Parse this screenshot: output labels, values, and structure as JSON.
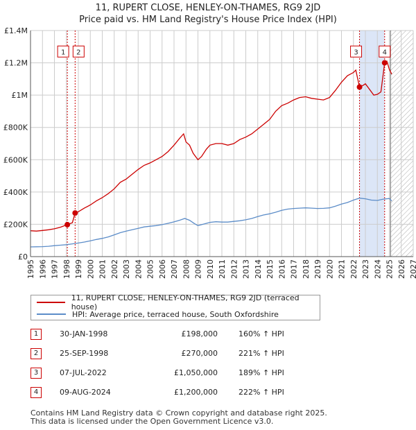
{
  "title_line1": "11, RUPERT CLOSE, HENLEY-ON-THAMES, RG9 2JD",
  "title_line2": "Price paid vs. HM Land Registry's House Price Index (HPI)",
  "colors": {
    "property_line": "#cc0000",
    "hpi_line": "#5b8cc8",
    "grid": "#cccccc",
    "highlight_fill": "#dce6f7",
    "marker_border": "#cc0000",
    "forecast_hatch": "#999999"
  },
  "chart_data": {
    "type": "line",
    "x_axis": {
      "min": 1995,
      "max": 2027,
      "ticks": [
        "1995",
        "1996",
        "1997",
        "1998",
        "1999",
        "2000",
        "2001",
        "2002",
        "2003",
        "2004",
        "2005",
        "2006",
        "2007",
        "2008",
        "2009",
        "2010",
        "2011",
        "2012",
        "2013",
        "2014",
        "2015",
        "2016",
        "2017",
        "2018",
        "2019",
        "2020",
        "2021",
        "2022",
        "2023",
        "2024",
        "2025",
        "2026",
        "2027"
      ]
    },
    "y_axis": {
      "min": 0,
      "max": 1400000,
      "ticks": [
        0,
        200000,
        400000,
        600000,
        800000,
        1000000,
        1200000,
        1400000
      ],
      "tick_labels": [
        "£0",
        "£200K",
        "£400K",
        "£600K",
        "£800K",
        "£1M",
        "£1.2M",
        "£1.4M"
      ]
    },
    "highlight_band": [
      2022.51,
      2024.6
    ],
    "forecast_start": 2025.1,
    "series": [
      {
        "name": "property",
        "points": [
          [
            1995.0,
            160000
          ],
          [
            1995.5,
            158000
          ],
          [
            1996.0,
            162000
          ],
          [
            1996.5,
            166000
          ],
          [
            1997.0,
            172000
          ],
          [
            1997.5,
            182000
          ],
          [
            1998.08,
            198000
          ],
          [
            1998.5,
            210000
          ],
          [
            1998.73,
            270000
          ],
          [
            1999.0,
            278000
          ],
          [
            1999.5,
            300000
          ],
          [
            2000.0,
            320000
          ],
          [
            2000.5,
            345000
          ],
          [
            2001.0,
            365000
          ],
          [
            2001.5,
            390000
          ],
          [
            2002.0,
            420000
          ],
          [
            2002.5,
            460000
          ],
          [
            2003.0,
            480000
          ],
          [
            2003.5,
            510000
          ],
          [
            2004.0,
            540000
          ],
          [
            2004.5,
            565000
          ],
          [
            2005.0,
            580000
          ],
          [
            2005.5,
            600000
          ],
          [
            2006.0,
            620000
          ],
          [
            2006.5,
            650000
          ],
          [
            2007.0,
            690000
          ],
          [
            2007.5,
            735000
          ],
          [
            2007.8,
            760000
          ],
          [
            2008.0,
            710000
          ],
          [
            2008.3,
            690000
          ],
          [
            2008.6,
            640000
          ],
          [
            2009.0,
            600000
          ],
          [
            2009.3,
            620000
          ],
          [
            2009.7,
            665000
          ],
          [
            2010.0,
            690000
          ],
          [
            2010.5,
            700000
          ],
          [
            2011.0,
            700000
          ],
          [
            2011.5,
            690000
          ],
          [
            2012.0,
            700000
          ],
          [
            2012.5,
            725000
          ],
          [
            2013.0,
            740000
          ],
          [
            2013.5,
            760000
          ],
          [
            2014.0,
            790000
          ],
          [
            2014.5,
            820000
          ],
          [
            2015.0,
            850000
          ],
          [
            2015.5,
            900000
          ],
          [
            2016.0,
            935000
          ],
          [
            2016.5,
            950000
          ],
          [
            2017.0,
            970000
          ],
          [
            2017.5,
            985000
          ],
          [
            2018.0,
            990000
          ],
          [
            2018.5,
            980000
          ],
          [
            2019.0,
            975000
          ],
          [
            2019.5,
            970000
          ],
          [
            2020.0,
            985000
          ],
          [
            2020.5,
            1030000
          ],
          [
            2021.0,
            1080000
          ],
          [
            2021.5,
            1120000
          ],
          [
            2022.0,
            1140000
          ],
          [
            2022.2,
            1155000
          ],
          [
            2022.51,
            1050000
          ],
          [
            2022.8,
            1060000
          ],
          [
            2023.0,
            1070000
          ],
          [
            2023.3,
            1040000
          ],
          [
            2023.7,
            1000000
          ],
          [
            2024.0,
            1005000
          ],
          [
            2024.3,
            1020000
          ],
          [
            2024.61,
            1200000
          ],
          [
            2024.8,
            1210000
          ],
          [
            2025.0,
            1160000
          ],
          [
            2025.2,
            1130000
          ]
        ]
      },
      {
        "name": "hpi",
        "points": [
          [
            1995.0,
            60000
          ],
          [
            1995.5,
            61000
          ],
          [
            1996.0,
            62000
          ],
          [
            1996.5,
            64000
          ],
          [
            1997.0,
            68000
          ],
          [
            1997.5,
            71000
          ],
          [
            1998.0,
            74000
          ],
          [
            1998.5,
            79000
          ],
          [
            1999.0,
            84000
          ],
          [
            1999.5,
            90000
          ],
          [
            2000.0,
            98000
          ],
          [
            2000.5,
            106000
          ],
          [
            2001.0,
            113000
          ],
          [
            2001.5,
            122000
          ],
          [
            2002.0,
            135000
          ],
          [
            2002.5,
            148000
          ],
          [
            2003.0,
            158000
          ],
          [
            2003.5,
            166000
          ],
          [
            2004.0,
            175000
          ],
          [
            2004.5,
            184000
          ],
          [
            2005.0,
            188000
          ],
          [
            2005.5,
            192000
          ],
          [
            2006.0,
            198000
          ],
          [
            2006.5,
            206000
          ],
          [
            2007.0,
            215000
          ],
          [
            2007.5,
            226000
          ],
          [
            2007.9,
            236000
          ],
          [
            2008.3,
            225000
          ],
          [
            2008.7,
            205000
          ],
          [
            2009.0,
            192000
          ],
          [
            2009.5,
            202000
          ],
          [
            2010.0,
            212000
          ],
          [
            2010.5,
            216000
          ],
          [
            2011.0,
            214000
          ],
          [
            2011.5,
            214000
          ],
          [
            2012.0,
            218000
          ],
          [
            2012.5,
            222000
          ],
          [
            2013.0,
            228000
          ],
          [
            2013.5,
            236000
          ],
          [
            2014.0,
            248000
          ],
          [
            2014.5,
            258000
          ],
          [
            2015.0,
            265000
          ],
          [
            2015.5,
            275000
          ],
          [
            2016.0,
            287000
          ],
          [
            2016.5,
            294000
          ],
          [
            2017.0,
            298000
          ],
          [
            2017.5,
            300000
          ],
          [
            2018.0,
            302000
          ],
          [
            2018.5,
            300000
          ],
          [
            2019.0,
            298000
          ],
          [
            2019.5,
            299000
          ],
          [
            2020.0,
            302000
          ],
          [
            2020.5,
            312000
          ],
          [
            2021.0,
            325000
          ],
          [
            2021.5,
            335000
          ],
          [
            2022.0,
            350000
          ],
          [
            2022.5,
            362000
          ],
          [
            2023.0,
            358000
          ],
          [
            2023.5,
            350000
          ],
          [
            2024.0,
            348000
          ],
          [
            2024.5,
            356000
          ],
          [
            2025.0,
            360000
          ],
          [
            2025.2,
            345000
          ]
        ]
      }
    ],
    "markers": [
      {
        "id": "1",
        "x": 1998.08,
        "y": 198000
      },
      {
        "id": "2",
        "x": 1998.73,
        "y": 270000
      },
      {
        "id": "3",
        "x": 2022.51,
        "y": 1050000
      },
      {
        "id": "4",
        "x": 2024.61,
        "y": 1200000
      }
    ],
    "marker_label_y": 1270000
  },
  "legend": {
    "property_label": "11, RUPERT CLOSE, HENLEY-ON-THAMES, RG9 2JD (terraced house)",
    "hpi_label": "HPI: Average price, terraced house, South Oxfordshire"
  },
  "transactions": [
    {
      "id": "1",
      "date": "30-JAN-1998",
      "price": "£198,000",
      "hpi": "160% ↑ HPI"
    },
    {
      "id": "2",
      "date": "25-SEP-1998",
      "price": "£270,000",
      "hpi": "221% ↑ HPI"
    },
    {
      "id": "3",
      "date": "07-JUL-2022",
      "price": "£1,050,000",
      "hpi": "189% ↑ HPI"
    },
    {
      "id": "4",
      "date": "09-AUG-2024",
      "price": "£1,200,000",
      "hpi": "222% ↑ HPI"
    }
  ],
  "footer_line1": "Contains HM Land Registry data © Crown copyright and database right 2025.",
  "footer_line2": "This data is licensed under the Open Government Licence v3.0."
}
